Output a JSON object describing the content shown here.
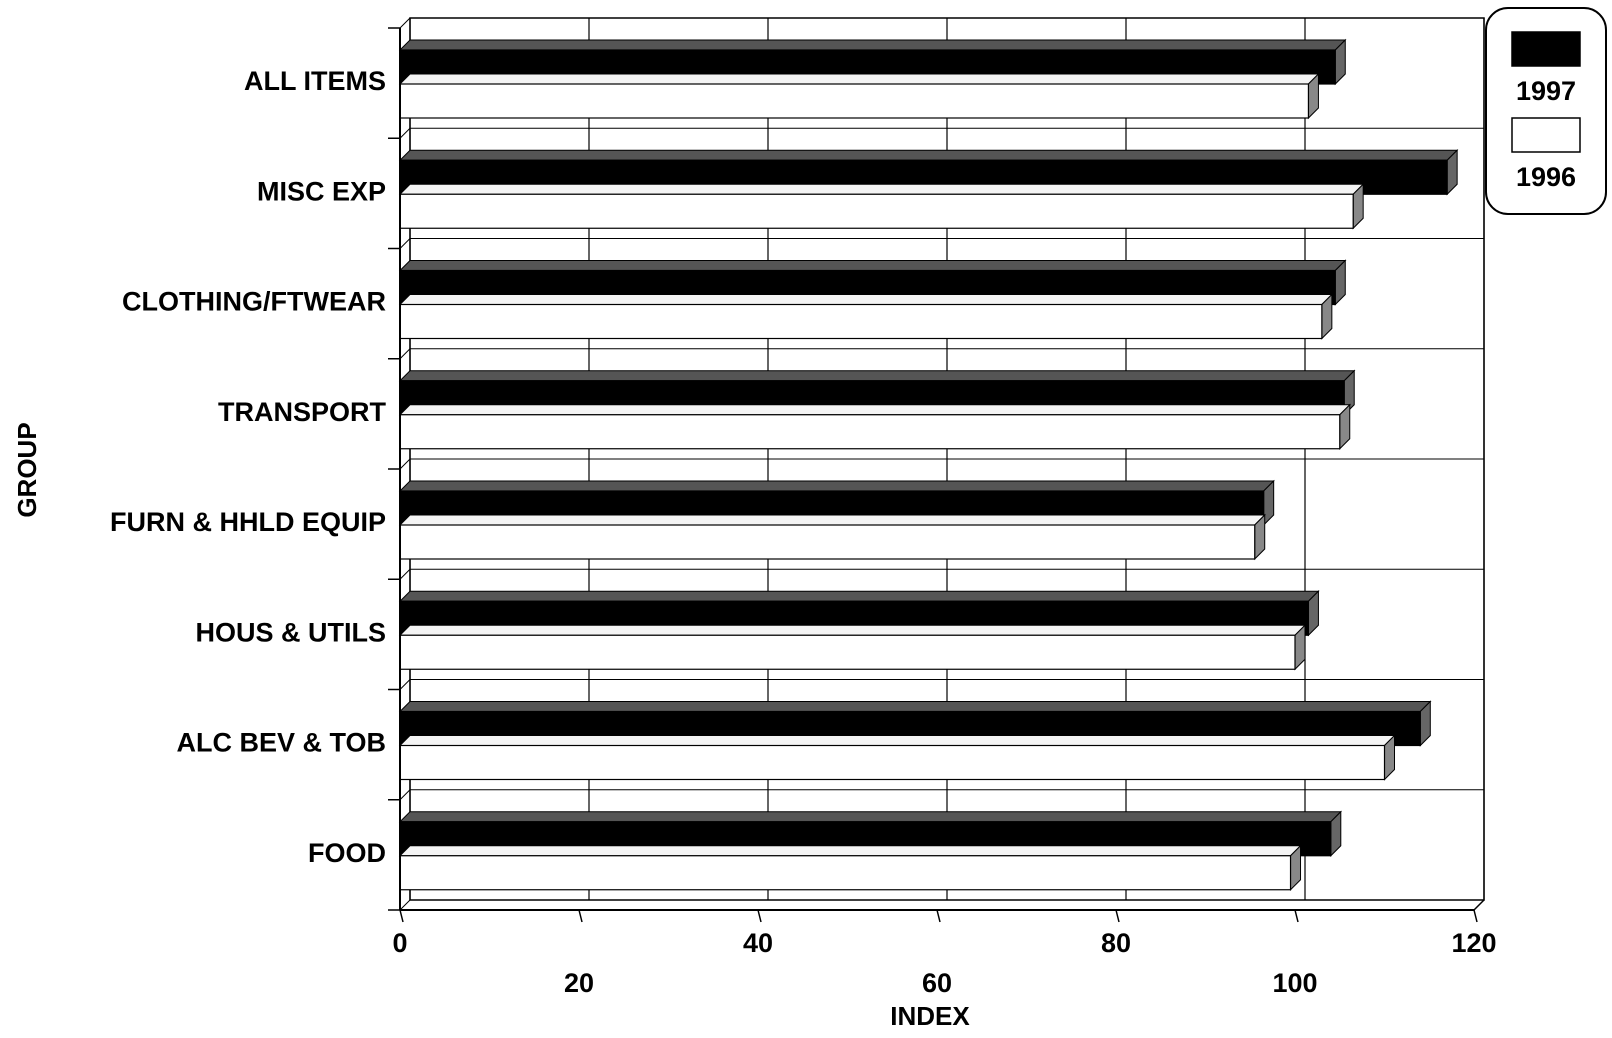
{
  "chart_data": {
    "type": "bar",
    "orientation": "horizontal",
    "title": "",
    "xlabel": "INDEX",
    "ylabel": "GROUP",
    "xlim": [
      0,
      120
    ],
    "x_ticks": [
      0,
      20,
      40,
      60,
      80,
      100,
      120
    ],
    "grid": true,
    "legend_position": "top-right",
    "categories": [
      "ALL ITEMS",
      "MISC EXP",
      "CLOTHING/FTWEAR",
      "TRANSPORT",
      "FURN & HHLD EQUIP",
      "HOUS & UTILS",
      "ALC BEV & TOB",
      "FOOD"
    ],
    "series": [
      {
        "name": "1997",
        "color": "#000000",
        "values": [
          104.5,
          117,
          104.5,
          105.5,
          96.5,
          101.5,
          114,
          104
        ]
      },
      {
        "name": "1996",
        "color": "#ffffff",
        "values": [
          101.5,
          106.5,
          103,
          105,
          95.5,
          100,
          110,
          99.5
        ]
      }
    ]
  }
}
